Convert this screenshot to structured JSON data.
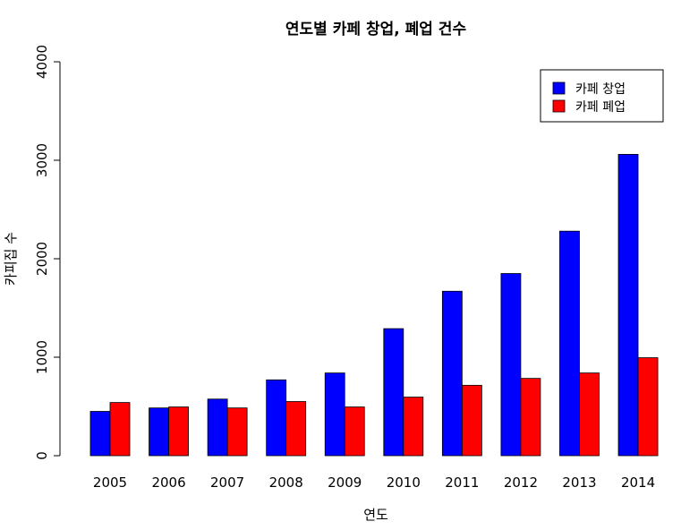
{
  "chart_data": {
    "type": "bar",
    "title": "연도별 카페 창업, 폐업 건수",
    "xlabel": "연도",
    "ylabel": "카피집 수",
    "categories": [
      "2005",
      "2006",
      "2007",
      "2008",
      "2009",
      "2010",
      "2011",
      "2012",
      "2013",
      "2014"
    ],
    "series": [
      {
        "name": "카페 창업",
        "color": "#0000FF",
        "values": [
          450,
          485,
          575,
          770,
          840,
          1290,
          1670,
          1850,
          2280,
          3060
        ]
      },
      {
        "name": "카페 폐업",
        "color": "#FF0000",
        "values": [
          540,
          495,
          485,
          550,
          495,
          595,
          715,
          785,
          840,
          995
        ]
      }
    ],
    "ylim": [
      0,
      4000
    ],
    "yticks": [
      0,
      1000,
      2000,
      3000,
      4000
    ],
    "grid": false,
    "legend_position": "top-right"
  }
}
